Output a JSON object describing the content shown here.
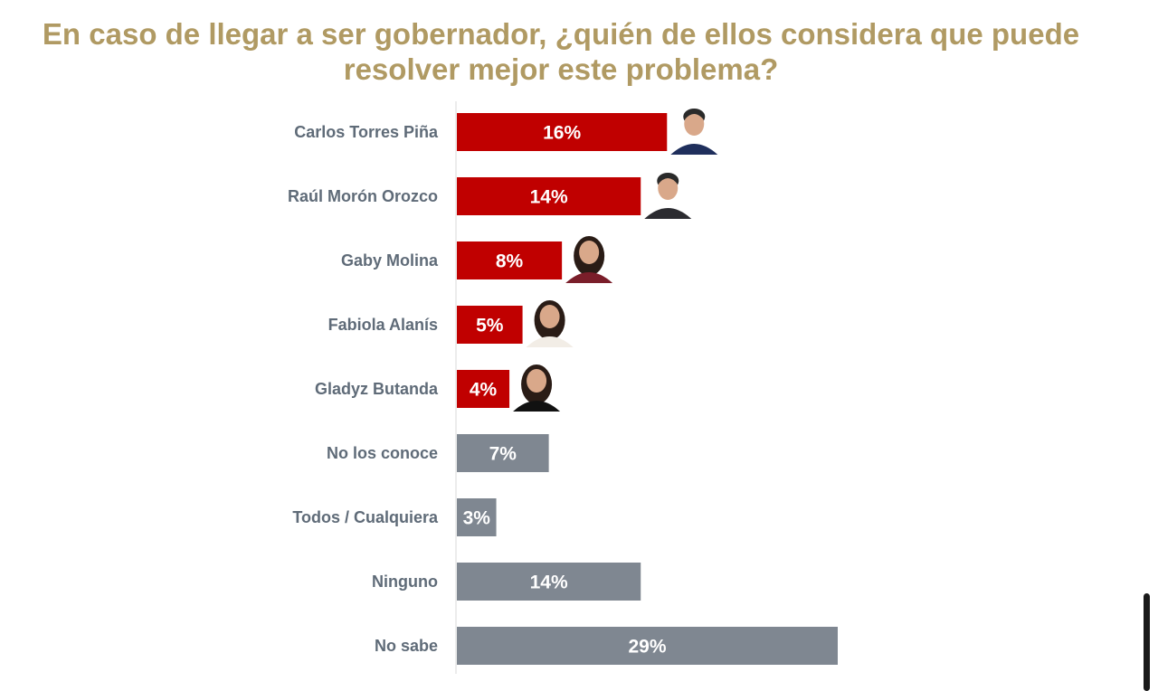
{
  "title": {
    "line1": "En caso de llegar a ser gobernador, ¿quién de ellos considera que puede",
    "line2": "resolver mejor este problema?"
  },
  "colors": {
    "title": "#b09a63",
    "candidate_bar": "#c00000",
    "other_bar": "#7f8791",
    "category_text": "#5f6b78",
    "value_text": "#ffffff",
    "axis_line": "#e6e6e6"
  },
  "chart_data": {
    "type": "bar",
    "orientation": "horizontal",
    "title": "En caso de llegar a ser gobernador, ¿quién de ellos considera que puede resolver mejor este problema?",
    "categories": [
      "Carlos Torres Piña",
      "Raúl Morón Orozco",
      "Gaby Molina",
      "Fabiola Alanís",
      "Gladyz Butanda",
      "No los conoce",
      "Todos / Cualquiera",
      "Ninguno",
      "No sabe"
    ],
    "values": [
      16,
      14,
      8,
      5,
      4,
      7,
      3,
      14,
      29
    ],
    "value_labels": [
      "16%",
      "14%",
      "8%",
      "5%",
      "4%",
      "7%",
      "3%",
      "14%",
      "29%"
    ],
    "bar_colors": [
      "#c00000",
      "#c00000",
      "#c00000",
      "#c00000",
      "#c00000",
      "#7f8791",
      "#7f8791",
      "#7f8791",
      "#7f8791"
    ],
    "photos": [
      {
        "icon": "man-portrait-icon",
        "shirt": "#1f2f5c"
      },
      {
        "icon": "man-portrait-icon",
        "shirt": "#2b2b30"
      },
      {
        "icon": "woman-portrait-icon",
        "shirt": "#7a1e2a"
      },
      {
        "icon": "woman-portrait-icon",
        "shirt": "#f2ede6"
      },
      {
        "icon": "woman-portrait-icon",
        "shirt": "#111111"
      },
      null,
      null,
      null,
      null
    ],
    "xlim": [
      0,
      29
    ],
    "grid": false,
    "legend": "none"
  }
}
